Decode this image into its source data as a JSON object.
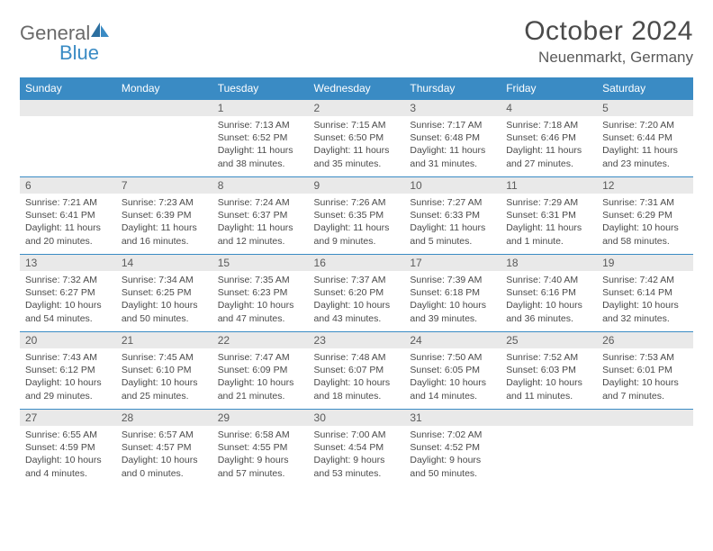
{
  "logo": {
    "word1": "General",
    "word2": "Blue"
  },
  "header": {
    "title": "October 2024",
    "location": "Neuenmarkt, Germany"
  },
  "colors": {
    "header_bg": "#3a8bc4",
    "header_text": "#ffffff",
    "daynum_bg": "#e9e9e9",
    "border": "#3a8bc4",
    "text": "#4a4a4a",
    "logo_gray": "#6a6a6a",
    "logo_blue": "#3a8bc4"
  },
  "dayNames": [
    "Sunday",
    "Monday",
    "Tuesday",
    "Wednesday",
    "Thursday",
    "Friday",
    "Saturday"
  ],
  "weeks": [
    [
      {
        "day": "",
        "sunrise": "",
        "sunset": "",
        "daylight": ""
      },
      {
        "day": "",
        "sunrise": "",
        "sunset": "",
        "daylight": ""
      },
      {
        "day": "1",
        "sunrise": "Sunrise: 7:13 AM",
        "sunset": "Sunset: 6:52 PM",
        "daylight": "Daylight: 11 hours and 38 minutes."
      },
      {
        "day": "2",
        "sunrise": "Sunrise: 7:15 AM",
        "sunset": "Sunset: 6:50 PM",
        "daylight": "Daylight: 11 hours and 35 minutes."
      },
      {
        "day": "3",
        "sunrise": "Sunrise: 7:17 AM",
        "sunset": "Sunset: 6:48 PM",
        "daylight": "Daylight: 11 hours and 31 minutes."
      },
      {
        "day": "4",
        "sunrise": "Sunrise: 7:18 AM",
        "sunset": "Sunset: 6:46 PM",
        "daylight": "Daylight: 11 hours and 27 minutes."
      },
      {
        "day": "5",
        "sunrise": "Sunrise: 7:20 AM",
        "sunset": "Sunset: 6:44 PM",
        "daylight": "Daylight: 11 hours and 23 minutes."
      }
    ],
    [
      {
        "day": "6",
        "sunrise": "Sunrise: 7:21 AM",
        "sunset": "Sunset: 6:41 PM",
        "daylight": "Daylight: 11 hours and 20 minutes."
      },
      {
        "day": "7",
        "sunrise": "Sunrise: 7:23 AM",
        "sunset": "Sunset: 6:39 PM",
        "daylight": "Daylight: 11 hours and 16 minutes."
      },
      {
        "day": "8",
        "sunrise": "Sunrise: 7:24 AM",
        "sunset": "Sunset: 6:37 PM",
        "daylight": "Daylight: 11 hours and 12 minutes."
      },
      {
        "day": "9",
        "sunrise": "Sunrise: 7:26 AM",
        "sunset": "Sunset: 6:35 PM",
        "daylight": "Daylight: 11 hours and 9 minutes."
      },
      {
        "day": "10",
        "sunrise": "Sunrise: 7:27 AM",
        "sunset": "Sunset: 6:33 PM",
        "daylight": "Daylight: 11 hours and 5 minutes."
      },
      {
        "day": "11",
        "sunrise": "Sunrise: 7:29 AM",
        "sunset": "Sunset: 6:31 PM",
        "daylight": "Daylight: 11 hours and 1 minute."
      },
      {
        "day": "12",
        "sunrise": "Sunrise: 7:31 AM",
        "sunset": "Sunset: 6:29 PM",
        "daylight": "Daylight: 10 hours and 58 minutes."
      }
    ],
    [
      {
        "day": "13",
        "sunrise": "Sunrise: 7:32 AM",
        "sunset": "Sunset: 6:27 PM",
        "daylight": "Daylight: 10 hours and 54 minutes."
      },
      {
        "day": "14",
        "sunrise": "Sunrise: 7:34 AM",
        "sunset": "Sunset: 6:25 PM",
        "daylight": "Daylight: 10 hours and 50 minutes."
      },
      {
        "day": "15",
        "sunrise": "Sunrise: 7:35 AM",
        "sunset": "Sunset: 6:23 PM",
        "daylight": "Daylight: 10 hours and 47 minutes."
      },
      {
        "day": "16",
        "sunrise": "Sunrise: 7:37 AM",
        "sunset": "Sunset: 6:20 PM",
        "daylight": "Daylight: 10 hours and 43 minutes."
      },
      {
        "day": "17",
        "sunrise": "Sunrise: 7:39 AM",
        "sunset": "Sunset: 6:18 PM",
        "daylight": "Daylight: 10 hours and 39 minutes."
      },
      {
        "day": "18",
        "sunrise": "Sunrise: 7:40 AM",
        "sunset": "Sunset: 6:16 PM",
        "daylight": "Daylight: 10 hours and 36 minutes."
      },
      {
        "day": "19",
        "sunrise": "Sunrise: 7:42 AM",
        "sunset": "Sunset: 6:14 PM",
        "daylight": "Daylight: 10 hours and 32 minutes."
      }
    ],
    [
      {
        "day": "20",
        "sunrise": "Sunrise: 7:43 AM",
        "sunset": "Sunset: 6:12 PM",
        "daylight": "Daylight: 10 hours and 29 minutes."
      },
      {
        "day": "21",
        "sunrise": "Sunrise: 7:45 AM",
        "sunset": "Sunset: 6:10 PM",
        "daylight": "Daylight: 10 hours and 25 minutes."
      },
      {
        "day": "22",
        "sunrise": "Sunrise: 7:47 AM",
        "sunset": "Sunset: 6:09 PM",
        "daylight": "Daylight: 10 hours and 21 minutes."
      },
      {
        "day": "23",
        "sunrise": "Sunrise: 7:48 AM",
        "sunset": "Sunset: 6:07 PM",
        "daylight": "Daylight: 10 hours and 18 minutes."
      },
      {
        "day": "24",
        "sunrise": "Sunrise: 7:50 AM",
        "sunset": "Sunset: 6:05 PM",
        "daylight": "Daylight: 10 hours and 14 minutes."
      },
      {
        "day": "25",
        "sunrise": "Sunrise: 7:52 AM",
        "sunset": "Sunset: 6:03 PM",
        "daylight": "Daylight: 10 hours and 11 minutes."
      },
      {
        "day": "26",
        "sunrise": "Sunrise: 7:53 AM",
        "sunset": "Sunset: 6:01 PM",
        "daylight": "Daylight: 10 hours and 7 minutes."
      }
    ],
    [
      {
        "day": "27",
        "sunrise": "Sunrise: 6:55 AM",
        "sunset": "Sunset: 4:59 PM",
        "daylight": "Daylight: 10 hours and 4 minutes."
      },
      {
        "day": "28",
        "sunrise": "Sunrise: 6:57 AM",
        "sunset": "Sunset: 4:57 PM",
        "daylight": "Daylight: 10 hours and 0 minutes."
      },
      {
        "day": "29",
        "sunrise": "Sunrise: 6:58 AM",
        "sunset": "Sunset: 4:55 PM",
        "daylight": "Daylight: 9 hours and 57 minutes."
      },
      {
        "day": "30",
        "sunrise": "Sunrise: 7:00 AM",
        "sunset": "Sunset: 4:54 PM",
        "daylight": "Daylight: 9 hours and 53 minutes."
      },
      {
        "day": "31",
        "sunrise": "Sunrise: 7:02 AM",
        "sunset": "Sunset: 4:52 PM",
        "daylight": "Daylight: 9 hours and 50 minutes."
      },
      {
        "day": "",
        "sunrise": "",
        "sunset": "",
        "daylight": ""
      },
      {
        "day": "",
        "sunrise": "",
        "sunset": "",
        "daylight": ""
      }
    ]
  ]
}
